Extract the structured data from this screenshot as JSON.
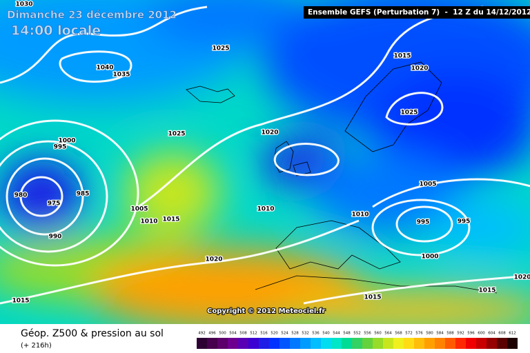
{
  "header": {
    "date": "Dimanche 23 décembre 2012",
    "time": "14:00 locale",
    "run": "Ensemble GEFS (Perturbation 7)  -  12 Z du 14/12/2012"
  },
  "copyright": "Copyright © 2012 Meteociel.fr",
  "footer": {
    "title": "Géop. Z500 & pression au sol",
    "lead": "(+ 216h)"
  },
  "isobar_labels": [
    1030,
    1025,
    1040,
    1035,
    1015,
    1020,
    1025,
    1025,
    1020,
    1000,
    995,
    980,
    975,
    985,
    990,
    1005,
    1010,
    1015,
    1010,
    1005,
    1010,
    995,
    995,
    1000,
    1020,
    1015,
    1015,
    1015,
    1020
  ],
  "scale": [
    {
      "value": 492,
      "color": "#2d0033"
    },
    {
      "value": 496,
      "color": "#46004d"
    },
    {
      "value": 500,
      "color": "#5c006b"
    },
    {
      "value": 504,
      "color": "#6e0090"
    },
    {
      "value": 508,
      "color": "#5a00b4"
    },
    {
      "value": 512,
      "color": "#3c00d2"
    },
    {
      "value": 516,
      "color": "#1e1ee6"
    },
    {
      "value": 520,
      "color": "#0032ff"
    },
    {
      "value": 524,
      "color": "#0055ff"
    },
    {
      "value": 528,
      "color": "#0078ff"
    },
    {
      "value": 532,
      "color": "#009bff"
    },
    {
      "value": 536,
      "color": "#00beff"
    },
    {
      "value": 540,
      "color": "#00dcf0"
    },
    {
      "value": 544,
      "color": "#00e6c8"
    },
    {
      "value": 548,
      "color": "#00dc96"
    },
    {
      "value": 552,
      "color": "#32d264"
    },
    {
      "value": 556,
      "color": "#64d23c"
    },
    {
      "value": 560,
      "color": "#96dc28"
    },
    {
      "value": 564,
      "color": "#c8e61e"
    },
    {
      "value": 568,
      "color": "#f0f01e"
    },
    {
      "value": 572,
      "color": "#ffdc14"
    },
    {
      "value": 576,
      "color": "#ffbe0a"
    },
    {
      "value": 580,
      "color": "#ffa000"
    },
    {
      "value": 584,
      "color": "#ff8200"
    },
    {
      "value": 588,
      "color": "#ff5a00"
    },
    {
      "value": 592,
      "color": "#ff2800"
    },
    {
      "value": 596,
      "color": "#f00000"
    },
    {
      "value": 600,
      "color": "#c80000"
    },
    {
      "value": 604,
      "color": "#960000"
    },
    {
      "value": 608,
      "color": "#5a0000"
    },
    {
      "value": 612,
      "color": "#1e0000"
    }
  ]
}
